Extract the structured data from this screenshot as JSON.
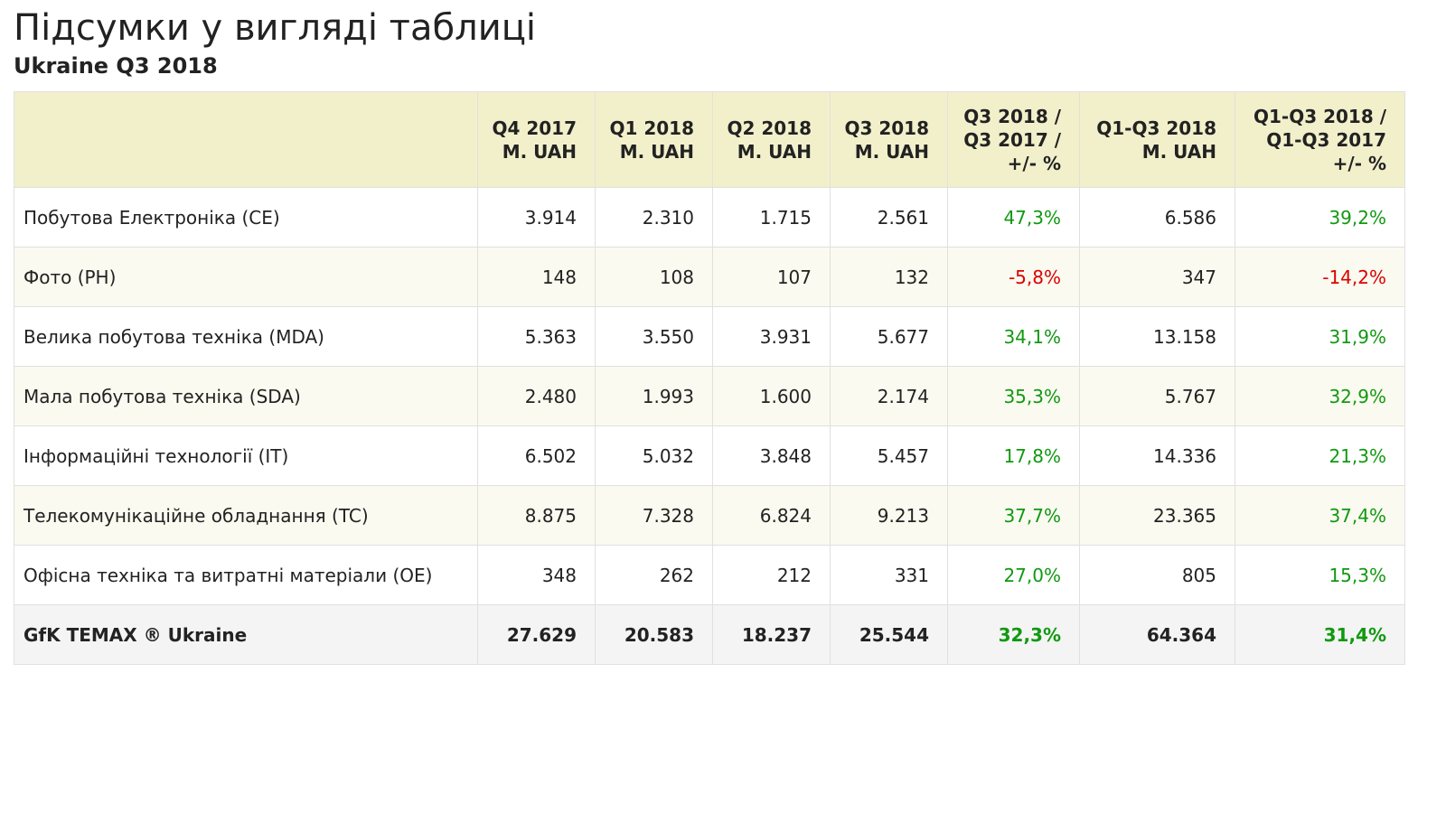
{
  "title": "Підсумки у вигляді таблиці",
  "subtitle": "Ukraine Q3 2018",
  "colors": {
    "header_bg": "#f2f0cb",
    "positive": "#119911",
    "negative": "#dd0000"
  },
  "table": {
    "headers": [
      "",
      "Q4 2017\nM. UAH",
      "Q1 2018\nM. UAH",
      "Q2 2018\nM. UAH",
      "Q3 2018\nM. UAH",
      "Q3 2018 /\nQ3 2017 /\n+/- %",
      "Q1-Q3 2018\nM. UAH",
      "Q1-Q3 2018 /\nQ1-Q3 2017\n+/- %"
    ],
    "rows": [
      {
        "label": "Побутова Електроніка (CE)",
        "q4_2017": "3.914",
        "q1_2018": "2.310",
        "q2_2018": "1.715",
        "q3_2018": "2.561",
        "q3_yoy": "47,3%",
        "q3_yoy_sign": "pos",
        "q1q3_2018": "6.586",
        "q1q3_yoy": "39,2%",
        "q1q3_yoy_sign": "pos"
      },
      {
        "label": "Фото (PH)",
        "q4_2017": "148",
        "q1_2018": "108",
        "q2_2018": "107",
        "q3_2018": "132",
        "q3_yoy": "-5,8%",
        "q3_yoy_sign": "neg",
        "q1q3_2018": "347",
        "q1q3_yoy": "-14,2%",
        "q1q3_yoy_sign": "neg"
      },
      {
        "label": "Велика побутова техніка (MDA)",
        "q4_2017": "5.363",
        "q1_2018": "3.550",
        "q2_2018": "3.931",
        "q3_2018": "5.677",
        "q3_yoy": "34,1%",
        "q3_yoy_sign": "pos",
        "q1q3_2018": "13.158",
        "q1q3_yoy": "31,9%",
        "q1q3_yoy_sign": "pos"
      },
      {
        "label": "Мала побутова техніка (SDA)",
        "q4_2017": "2.480",
        "q1_2018": "1.993",
        "q2_2018": "1.600",
        "q3_2018": "2.174",
        "q3_yoy": "35,3%",
        "q3_yoy_sign": "pos",
        "q1q3_2018": "5.767",
        "q1q3_yoy": "32,9%",
        "q1q3_yoy_sign": "pos"
      },
      {
        "label": "Інформаційні технології (IT)",
        "q4_2017": "6.502",
        "q1_2018": "5.032",
        "q2_2018": "3.848",
        "q3_2018": "5.457",
        "q3_yoy": "17,8%",
        "q3_yoy_sign": "pos",
        "q1q3_2018": "14.336",
        "q1q3_yoy": "21,3%",
        "q1q3_yoy_sign": "pos"
      },
      {
        "label": "Телекомунікаційне обладнання (TC)",
        "q4_2017": "8.875",
        "q1_2018": "7.328",
        "q2_2018": "6.824",
        "q3_2018": "9.213",
        "q3_yoy": "37,7%",
        "q3_yoy_sign": "pos",
        "q1q3_2018": "23.365",
        "q1q3_yoy": "37,4%",
        "q1q3_yoy_sign": "pos"
      },
      {
        "label": "Офісна техніка та витратні матеріали (OE)",
        "q4_2017": "348",
        "q1_2018": "262",
        "q2_2018": "212",
        "q3_2018": "331",
        "q3_yoy": "27,0%",
        "q3_yoy_sign": "pos",
        "q1q3_2018": "805",
        "q1q3_yoy": "15,3%",
        "q1q3_yoy_sign": "pos"
      }
    ],
    "total": {
      "label": "GfK TEMAX ® Ukraine",
      "q4_2017": "27.629",
      "q1_2018": "20.583",
      "q2_2018": "18.237",
      "q3_2018": "25.544",
      "q3_yoy": "32,3%",
      "q3_yoy_sign": "pos",
      "q1q3_2018": "64.364",
      "q1q3_yoy": "31,4%",
      "q1q3_yoy_sign": "pos"
    }
  }
}
